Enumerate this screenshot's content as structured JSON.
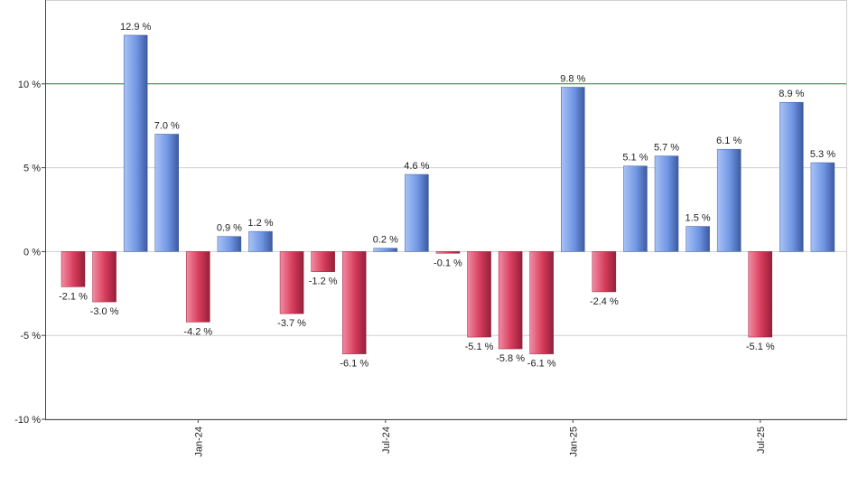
{
  "chart_data": {
    "type": "bar",
    "title": "",
    "xlabel": "",
    "ylabel": "",
    "ylim": [
      -10,
      15
    ],
    "y_ticks": [
      -10,
      -5,
      0,
      5,
      10
    ],
    "y_tick_suffix": " %",
    "x_tick_labels": [
      {
        "label": "Jan-24",
        "index": 4
      },
      {
        "label": "Jul-24",
        "index": 10
      },
      {
        "label": "Jan-25",
        "index": 16
      },
      {
        "label": "Jul-25",
        "index": 22
      }
    ],
    "reference_line": {
      "value": 10,
      "color": "#2e7d32"
    },
    "grid": "horizontal",
    "legend": "none",
    "values": [
      -2.1,
      -3.0,
      12.9,
      7.0,
      -4.2,
      0.9,
      1.2,
      -3.7,
      -1.2,
      -6.1,
      0.2,
      4.6,
      -0.1,
      -5.1,
      -5.8,
      -6.1,
      9.8,
      -2.4,
      5.1,
      5.7,
      1.5,
      6.1,
      -5.1,
      8.9,
      5.3
    ],
    "value_labels": [
      "-2.1 %",
      "-3.0 %",
      "12.9 %",
      "7.0 %",
      "-4.2 %",
      "0.9 %",
      "1.2 %",
      "-3.7 %",
      "-1.2 %",
      "-6.1 %",
      "0.2 %",
      "4.6 %",
      "-0.1 %",
      "-5.1 %",
      "-5.8 %",
      "-6.1 %",
      "9.8 %",
      "-2.4 %",
      "5.1 %",
      "5.7 %",
      "1.5 %",
      "6.1 %",
      "-5.1 %",
      "8.9 %",
      "5.3 %"
    ],
    "colors": {
      "positive": "#6f95e3",
      "negative": "#d63a5a"
    }
  }
}
